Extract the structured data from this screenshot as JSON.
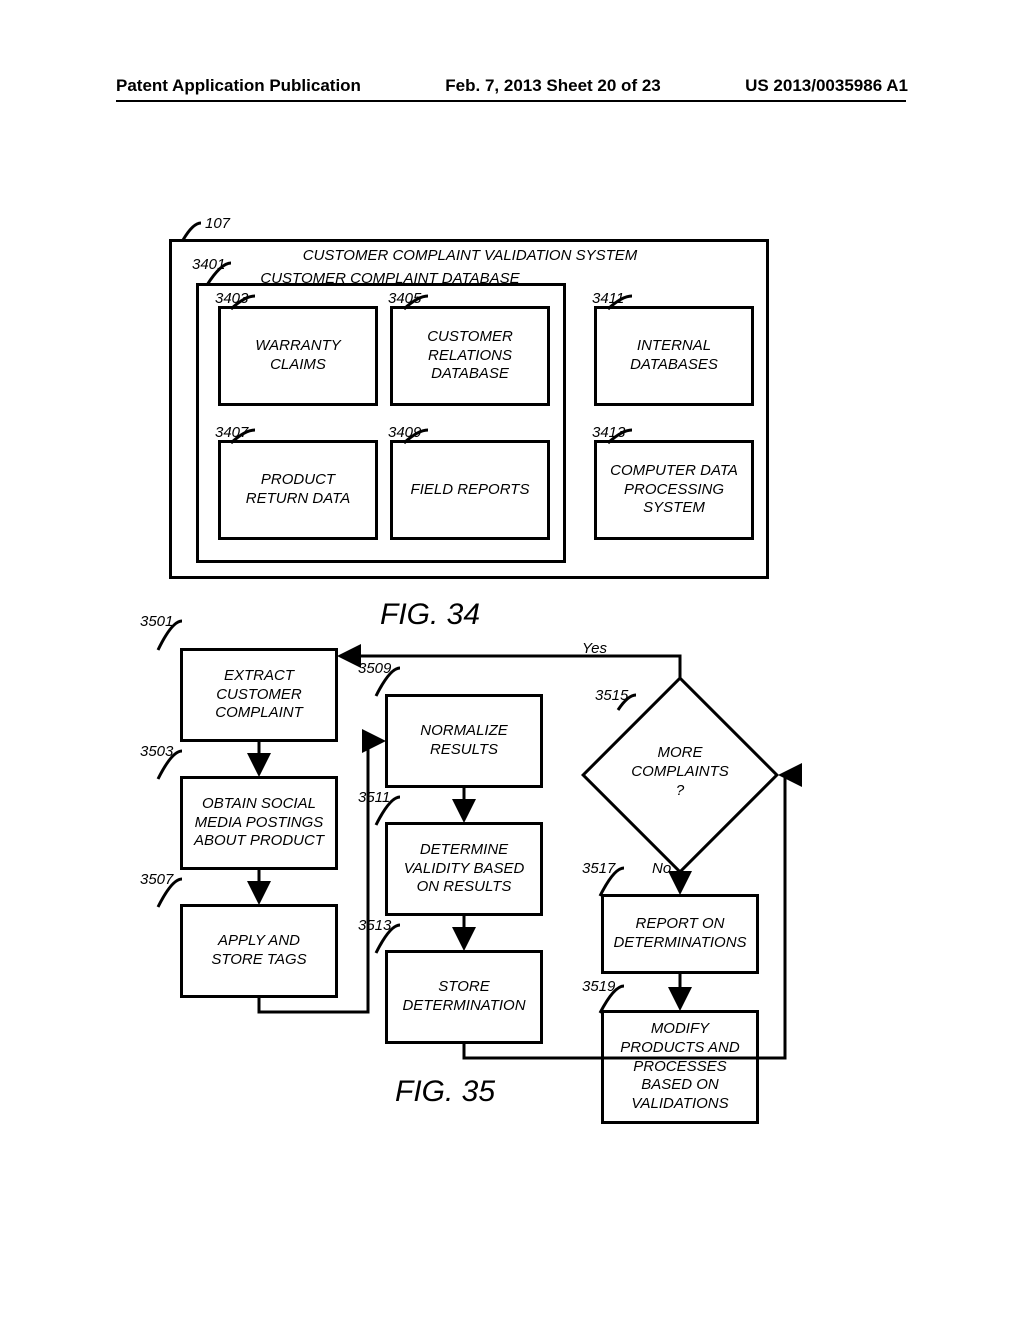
{
  "header": {
    "left": "Patent Application Publication",
    "center": "Feb. 7, 2013   Sheet 20 of 23",
    "right": "US 2013/0035986 A1"
  },
  "fig34": {
    "caption": "FIG. 34",
    "outer": {
      "ref": "107",
      "title": "CUSTOMER COMPLAINT VALIDATION SYSTEM"
    },
    "inner": {
      "ref": "3401",
      "title": "CUSTOMER COMPLAINT DATABASE"
    },
    "boxes": {
      "b3403": {
        "ref": "3403",
        "label": "WARRANTY\nCLAIMS"
      },
      "b3405": {
        "ref": "3405",
        "label": "CUSTOMER\nRELATIONS\nDATABASE"
      },
      "b3407": {
        "ref": "3407",
        "label": "PRODUCT\nRETURN DATA"
      },
      "b3409": {
        "ref": "3409",
        "label": "FIELD REPORTS"
      },
      "b3411": {
        "ref": "3411",
        "label": "INTERNAL\nDATABASES"
      },
      "b3413": {
        "ref": "3413",
        "label": "COMPUTER DATA\nPROCESSING\nSYSTEM"
      }
    }
  },
  "fig35": {
    "caption": "FIG. 35",
    "boxes": {
      "b3501": {
        "ref": "3501",
        "label": "EXTRACT\nCUSTOMER\nCOMPLAINT"
      },
      "b3503": {
        "ref": "3503",
        "label": "OBTAIN SOCIAL\nMEDIA POSTINGS\nABOUT PRODUCT"
      },
      "b3507": {
        "ref": "3507",
        "label": "APPLY AND\nSTORE TAGS"
      },
      "b3509": {
        "ref": "3509",
        "label": "NORMALIZE\nRESULTS"
      },
      "b3511": {
        "ref": "3511",
        "label": "DETERMINE\nVALIDITY BASED\nON  RESULTS"
      },
      "b3513": {
        "ref": "3513",
        "label": "STORE\nDETERMINATION"
      },
      "b3515": {
        "ref": "3515",
        "label": "MORE\nCOMPLAINTS\n?",
        "yes": "Yes",
        "no": "No"
      },
      "b3517": {
        "ref": "3517",
        "label": "REPORT ON\nDETERMINATIONS"
      },
      "b3519": {
        "ref": "3519",
        "label": "MODIFY\nPRODUCTS AND\nPROCESSES\nBASED ON\nVALIDATIONS"
      }
    }
  },
  "style": {
    "line_width": 3,
    "font_family": "Arial",
    "text_color": "#000000",
    "background": "#ffffff"
  }
}
